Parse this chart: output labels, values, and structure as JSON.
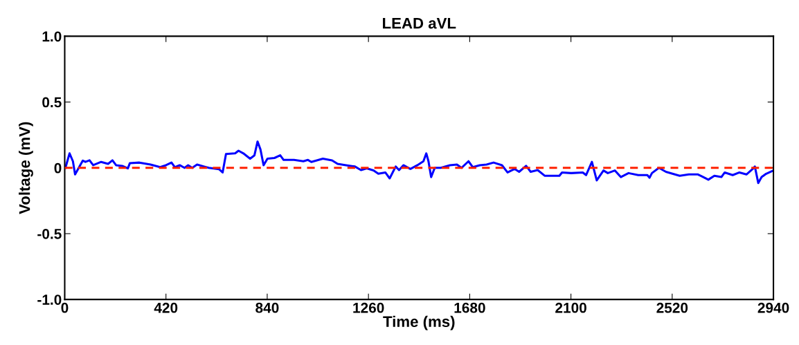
{
  "chart_data": {
    "type": "line",
    "title": "LEAD aVL",
    "xlabel": "Time (ms)",
    "ylabel": "Voltage (mV)",
    "xlim": [
      0,
      2940
    ],
    "xticks": [
      0,
      420,
      840,
      1260,
      1680,
      2100,
      2520,
      2940
    ],
    "ylim": [
      -1.0,
      1.0
    ],
    "yticks": [
      {
        "value": -1.0,
        "label": "-1.0"
      },
      {
        "value": -0.5,
        "label": "-0.5"
      },
      0,
      {
        "value": 0.5,
        "label": "0.5"
      },
      {
        "value": 1.0,
        "label": "1.0"
      }
    ],
    "grid": false,
    "legend": false,
    "line_style": "solid",
    "marker": "none",
    "ref_lines": [
      {
        "axis": "y",
        "value": 0,
        "color": "#ff2000",
        "line_style": "dashed"
      }
    ],
    "series": [
      {
        "color": "#0000ff",
        "x": [
          3,
          20,
          34,
          43,
          55,
          75,
          86,
          103,
          118,
          151,
          180,
          198,
          213,
          238,
          262,
          270,
          310,
          356,
          396,
          420,
          443,
          457,
          477,
          497,
          512,
          529,
          549,
          578,
          598,
          640,
          655,
          669,
          707,
          721,
          741,
          769,
          787,
          800,
          812,
          825,
          841,
          870,
          894,
          908,
          951,
          990,
          1009,
          1023,
          1071,
          1109,
          1132,
          1167,
          1204,
          1229,
          1253,
          1281,
          1301,
          1330,
          1348,
          1373,
          1387,
          1405,
          1434,
          1463,
          1488,
          1500,
          1509,
          1520,
          1535,
          1560,
          1598,
          1627,
          1646,
          1675,
          1693,
          1722,
          1750,
          1779,
          1814,
          1837,
          1866,
          1885,
          1914,
          1933,
          1962,
          1991,
          2052,
          2063,
          2101,
          2149,
          2163,
          2187,
          2207,
          2235,
          2253,
          2282,
          2307,
          2339,
          2379,
          2417,
          2426,
          2436,
          2465,
          2494,
          2551,
          2589,
          2627,
          2670,
          2695,
          2724,
          2738,
          2771,
          2799,
          2828,
          2853,
          2863,
          2877,
          2891,
          2910,
          2934
        ],
        "values": [
          0,
          0.11,
          0.05,
          -0.05,
          -0.01,
          0.055,
          0.045,
          0.057,
          0.02,
          0.045,
          0.03,
          0.057,
          0.02,
          0.015,
          -0.004,
          0.035,
          0.04,
          0.025,
          0.005,
          0.02,
          0.04,
          0.005,
          0.02,
          0,
          0.02,
          0,
          0.025,
          0.01,
          0,
          -0.01,
          -0.035,
          0.105,
          0.11,
          0.13,
          0.11,
          0.07,
          0.095,
          0.2,
          0.14,
          0.02,
          0.07,
          0.075,
          0.095,
          0.06,
          0.06,
          0.05,
          0.06,
          0.045,
          0.07,
          0.057,
          0.03,
          0.02,
          0.01,
          -0.017,
          -0.004,
          -0.02,
          -0.045,
          -0.035,
          -0.08,
          0.01,
          -0.017,
          0.02,
          -0.008,
          0.02,
          0.05,
          0.11,
          0.05,
          -0.07,
          0,
          0,
          0.02,
          0.025,
          0,
          0.05,
          0.005,
          0.02,
          0.025,
          0.04,
          0.02,
          -0.035,
          -0.008,
          -0.03,
          0.015,
          -0.03,
          -0.017,
          -0.06,
          -0.06,
          -0.035,
          -0.04,
          -0.035,
          -0.055,
          0.045,
          -0.095,
          -0.02,
          -0.04,
          -0.02,
          -0.07,
          -0.04,
          -0.055,
          -0.055,
          -0.075,
          -0.04,
          0,
          -0.03,
          -0.06,
          -0.05,
          -0.05,
          -0.09,
          -0.06,
          -0.07,
          -0.035,
          -0.055,
          -0.035,
          -0.05,
          -0.01,
          0.01,
          -0.115,
          -0.07,
          -0.045,
          -0.025
        ]
      }
    ]
  }
}
